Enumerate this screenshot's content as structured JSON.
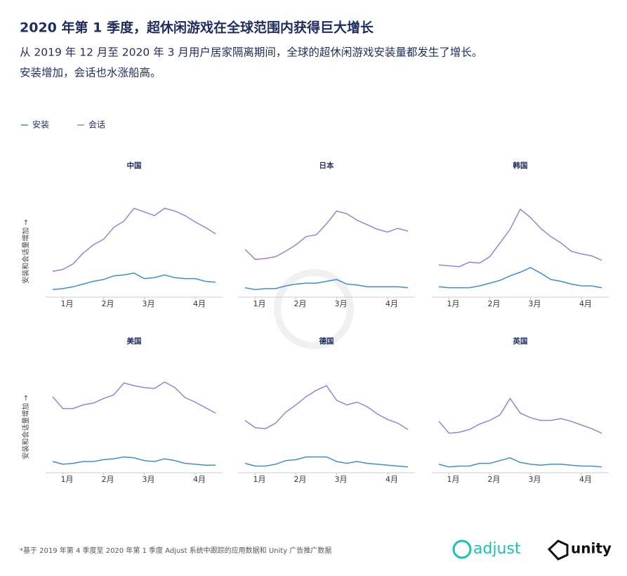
{
  "header": {
    "title": "2020 年第 1 季度，超休闲游戏在全球范围内获得巨大增长",
    "subtitle": [
      "从 2019 年 12 月至 2020 年 3 月用户居家隔离期间，全球的超休闲游戏安装量都发生了增长。",
      "安装增加，会话也水涨船高。"
    ]
  },
  "chart_data": [
    {
      "type": "line",
      "title": "中国",
      "ylabel": "安装和会话量增加 →",
      "ylim": [
        0,
        100
      ],
      "categories": [
        null,
        "1月",
        null,
        null,
        null,
        "2月",
        null,
        null,
        null,
        "3月",
        null,
        null,
        null,
        null,
        "4月",
        null,
        null
      ],
      "series": [
        {
          "name": "安装",
          "color": "#3a8fd3",
          "values": [
            6,
            7,
            9,
            12,
            15,
            17,
            21,
            22,
            24,
            18,
            19,
            22,
            19,
            18,
            18,
            15,
            14
          ]
        },
        {
          "name": "会话",
          "color": "#9b80d6",
          "values": [
            26,
            28,
            34,
            46,
            55,
            61,
            74,
            81,
            95,
            91,
            87,
            95,
            92,
            87,
            80,
            74,
            67
          ]
        }
      ]
    },
    {
      "type": "line",
      "title": "日本",
      "ylim": [
        0,
        100
      ],
      "categories": [
        null,
        "1月",
        null,
        null,
        null,
        "2月",
        null,
        null,
        null,
        "3月",
        null,
        null,
        null,
        null,
        "4月",
        null,
        null
      ],
      "series": [
        {
          "name": "安装",
          "color": "#3a8fd3",
          "values": [
            8,
            6,
            7,
            7,
            10,
            12,
            13,
            13,
            15,
            17,
            12,
            11,
            9,
            9,
            9,
            9,
            8
          ]
        },
        {
          "name": "会话",
          "color": "#9b80d6",
          "values": [
            50,
            39,
            40,
            42,
            48,
            55,
            64,
            66,
            78,
            92,
            89,
            82,
            77,
            72,
            69,
            73,
            70
          ]
        }
      ]
    },
    {
      "type": "line",
      "title": "韩国",
      "ylim": [
        0,
        100
      ],
      "categories": [
        null,
        "1月",
        null,
        null,
        null,
        "2月",
        null,
        null,
        null,
        "3月",
        null,
        null,
        null,
        null,
        "4月",
        null,
        null
      ],
      "series": [
        {
          "name": "安装",
          "color": "#3a8fd3",
          "values": [
            9,
            8,
            8,
            8,
            10,
            13,
            16,
            21,
            25,
            30,
            24,
            17,
            15,
            12,
            10,
            10,
            8
          ]
        },
        {
          "name": "会话",
          "color": "#9b80d6",
          "values": [
            33,
            32,
            31,
            36,
            35,
            42,
            57,
            72,
            94,
            85,
            73,
            64,
            57,
            48,
            45,
            43,
            38
          ]
        }
      ]
    },
    {
      "type": "line",
      "title": "美国",
      "ylabel": "安装和会话量增加 →",
      "ylim": [
        0,
        100
      ],
      "categories": [
        null,
        "1月",
        null,
        null,
        null,
        "2月",
        null,
        null,
        null,
        "3月",
        null,
        null,
        null,
        null,
        "4月",
        null,
        null
      ],
      "series": [
        {
          "name": "安装",
          "color": "#3a8fd3",
          "values": [
            10,
            7,
            8,
            10,
            10,
            12,
            13,
            15,
            14,
            11,
            10,
            13,
            11,
            8,
            7,
            6,
            6
          ]
        },
        {
          "name": "会话",
          "color": "#9b80d6",
          "values": [
            81,
            68,
            68,
            72,
            74,
            79,
            83,
            96,
            93,
            91,
            90,
            97,
            91,
            80,
            75,
            69,
            63
          ]
        }
      ]
    },
    {
      "type": "line",
      "title": "德国",
      "ylim": [
        0,
        100
      ],
      "categories": [
        null,
        "1月",
        null,
        null,
        null,
        "2月",
        null,
        null,
        null,
        "3月",
        null,
        null,
        null,
        null,
        "4月",
        null,
        null
      ],
      "series": [
        {
          "name": "安装",
          "color": "#3a8fd3",
          "values": [
            8,
            5,
            5,
            7,
            11,
            12,
            15,
            15,
            15,
            10,
            8,
            10,
            8,
            7,
            6,
            5,
            4
          ]
        },
        {
          "name": "会话",
          "color": "#9b80d6",
          "values": [
            55,
            47,
            46,
            52,
            64,
            72,
            81,
            88,
            93,
            77,
            72,
            75,
            70,
            62,
            56,
            52,
            45
          ]
        }
      ]
    },
    {
      "type": "line",
      "title": "英国",
      "ylim": [
        0,
        100
      ],
      "categories": [
        null,
        "1月",
        null,
        null,
        null,
        "2月",
        null,
        null,
        null,
        "3月",
        null,
        null,
        null,
        null,
        "4月",
        null,
        null
      ],
      "series": [
        {
          "name": "安装",
          "color": "#3a8fd3",
          "values": [
            7,
            4,
            5,
            5,
            8,
            8,
            11,
            14,
            9,
            7,
            6,
            7,
            7,
            6,
            5,
            5,
            4
          ]
        },
        {
          "name": "会话",
          "color": "#9b80d6",
          "values": [
            54,
            41,
            42,
            45,
            51,
            55,
            61,
            79,
            63,
            58,
            55,
            55,
            57,
            54,
            50,
            46,
            41
          ]
        }
      ]
    }
  ],
  "footer": {
    "note": "*基于 2019 年第 4 季度至 2020 年第 1 季度 Adjust 系统中跟踪的应用数据和 Unity 广告推广数据",
    "logos": [
      "adjust",
      "unity"
    ]
  }
}
